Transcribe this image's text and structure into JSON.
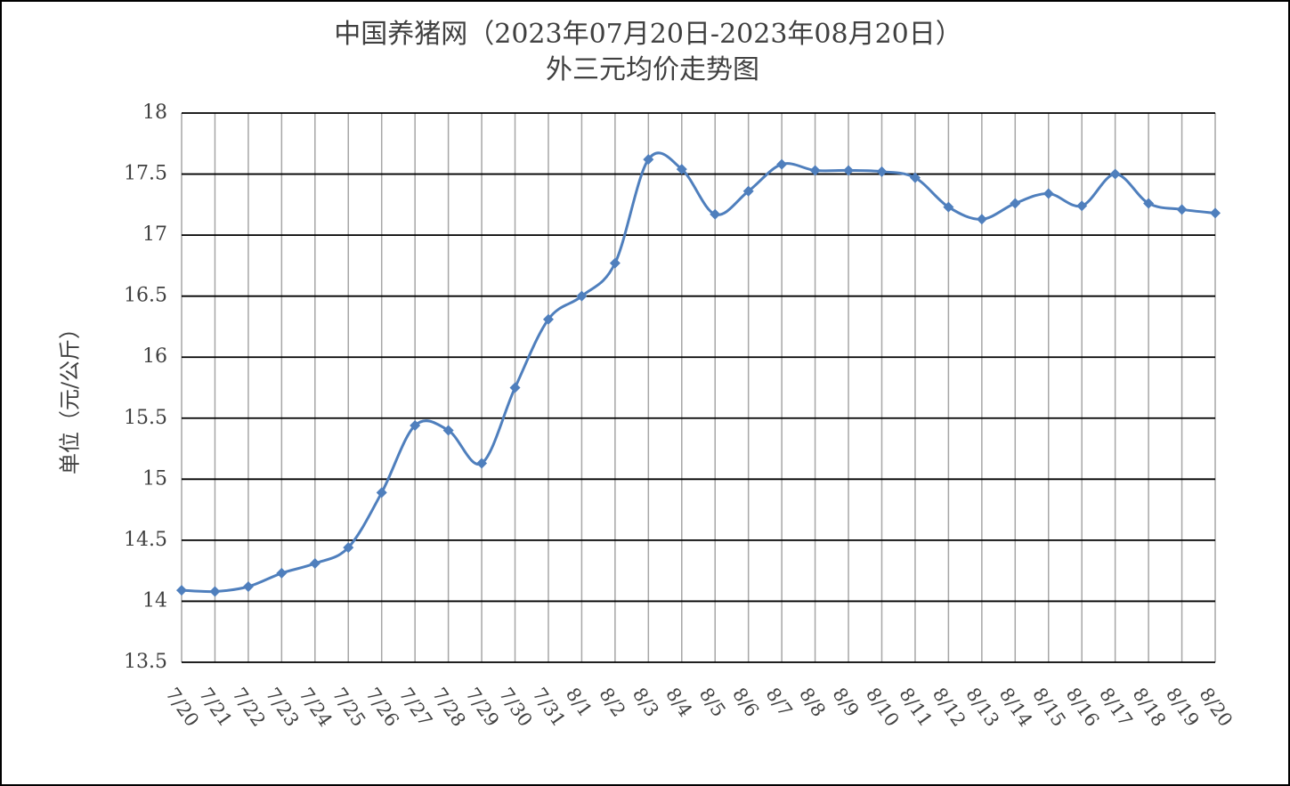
{
  "chart_data": {
    "type": "line",
    "title": "中国养猪网（2023年07月20日-2023年08月20日）",
    "subtitle": "外三元均价走势图",
    "y_label": "单位（元/公斤）",
    "categories": [
      "7/20",
      "7/21",
      "7/22",
      "7/23",
      "7/24",
      "7/25",
      "7/26",
      "7/27",
      "7/28",
      "7/29",
      "7/30",
      "7/31",
      "8/1",
      "8/2",
      "8/3",
      "8/4",
      "8/5",
      "8/6",
      "8/7",
      "8/8",
      "8/9",
      "8/10",
      "8/11",
      "8/12",
      "8/13",
      "8/14",
      "8/15",
      "8/16",
      "8/17",
      "8/18",
      "8/19",
      "8/20"
    ],
    "series": [
      {
        "name": "外三元均价",
        "color": "#4f7fbd",
        "values": [
          14.09,
          14.08,
          14.12,
          14.23,
          14.31,
          14.44,
          14.89,
          15.44,
          15.4,
          15.13,
          15.75,
          16.31,
          16.5,
          16.77,
          17.62,
          17.54,
          17.17,
          17.36,
          17.58,
          17.53,
          17.53,
          17.52,
          17.47,
          17.23,
          17.13,
          17.26,
          17.34,
          17.24,
          17.5,
          17.26,
          17.21,
          17.18
        ]
      }
    ],
    "ylim": [
      13.5,
      18
    ],
    "yticks": [
      13.5,
      14,
      14.5,
      15,
      15.5,
      16,
      16.5,
      17,
      17.5,
      18
    ],
    "grid": true,
    "smooth": true
  }
}
